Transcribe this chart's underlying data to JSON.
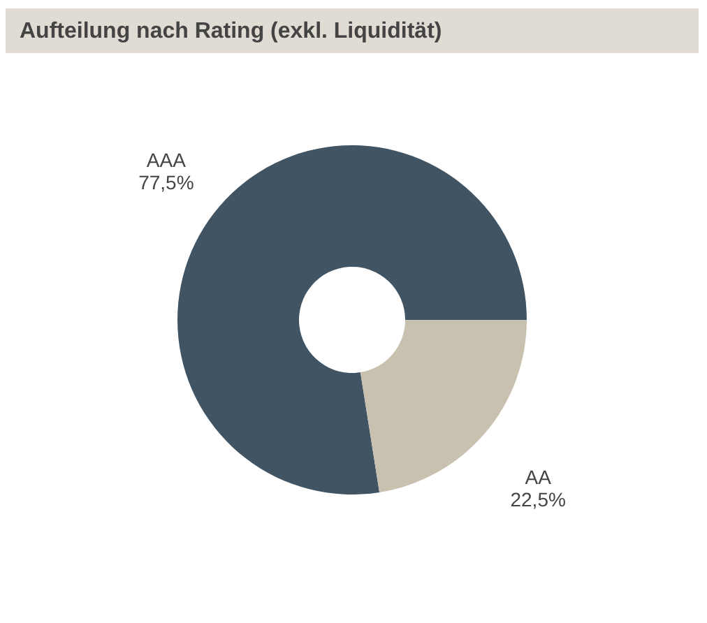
{
  "chart_data": {
    "type": "donut",
    "title": "Aufteilung nach Rating (exkl. Liquidität)",
    "categories": [
      "AAA",
      "AA"
    ],
    "values": [
      77.5,
      22.5
    ],
    "colors": [
      "#405464",
      "#c9c1b0"
    ],
    "value_labels": [
      "77,5%",
      "22,5%"
    ],
    "legend": false
  }
}
